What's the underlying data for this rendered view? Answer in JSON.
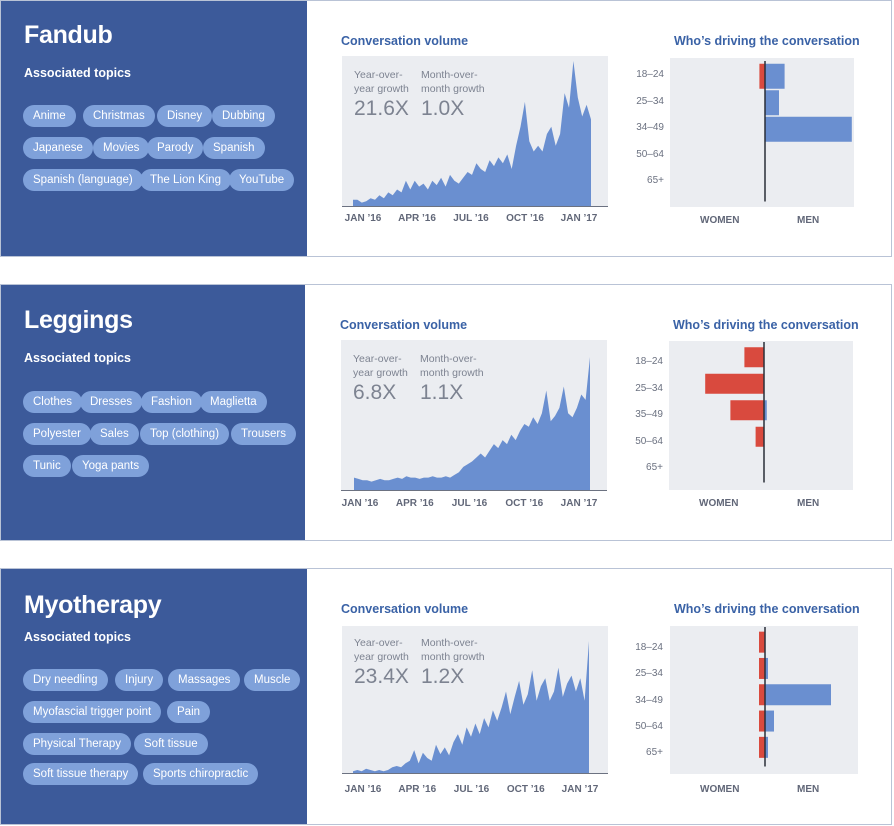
{
  "colors": {
    "panel": "#3c5a9a",
    "pill": "#7fa1da",
    "men": "#6a8fd0",
    "women": "#d94a3e",
    "area": "#6a8fd0"
  },
  "cards": [
    {
      "title": "Fandub",
      "associated_label": "Associated topics",
      "topics": [
        "Anime",
        "Christmas",
        "Disney",
        "Dubbing",
        "Japanese",
        "Movies",
        "Parody",
        "Spanish",
        "Spanish (language)",
        "The Lion King",
        "YouTube"
      ],
      "volume_title": "Conversation volume",
      "yoy_label": "Year-over-\nyear growth",
      "yoy_value": "21.6X",
      "mom_label": "Month-over-\nmonth growth",
      "mom_value": "1.0X",
      "demo_title": "Who’s driving the conversation",
      "women_label": "WOMEN",
      "men_label": "MEN"
    },
    {
      "title": "Leggings",
      "associated_label": "Associated topics",
      "topics": [
        "Clothes",
        "Dresses",
        "Fashion",
        "Maglietta",
        "Polyester",
        "Sales",
        "Top (clothing)",
        "Trousers",
        "Tunic",
        "Yoga pants"
      ],
      "volume_title": "Conversation volume",
      "yoy_label": "Year-over-\nyear growth",
      "yoy_value": "6.8X",
      "mom_label": "Month-over-\nmonth growth",
      "mom_value": "1.1X",
      "demo_title": "Who’s driving the conversation",
      "women_label": "WOMEN",
      "men_label": "MEN"
    },
    {
      "title": "Myotherapy",
      "associated_label": "Associated topics",
      "topics": [
        "Dry needling",
        "Injury",
        "Massages",
        "Muscle",
        "Myofascial trigger point",
        "Pain",
        "Physical Therapy",
        "Soft tissue",
        "Soft tissue therapy",
        "Sports chiropractic"
      ],
      "volume_title": "Conversation volume",
      "yoy_label": "Year-over-\nyear growth",
      "yoy_value": "23.4X",
      "mom_label": "Month-over-\nmonth growth",
      "mom_value": "1.2X",
      "demo_title": "Who’s driving the conversation",
      "women_label": "WOMEN",
      "men_label": "MEN"
    }
  ],
  "chart_data": [
    {
      "type": "area",
      "title": "Conversation volume",
      "x_ticks": [
        "JAN ’16",
        "APR ’16",
        "JUL ’16",
        "OCT ’16",
        "JAN ’17"
      ],
      "values": [
        0.05,
        0.05,
        0.03,
        0.04,
        0.06,
        0.05,
        0.08,
        0.06,
        0.1,
        0.08,
        0.12,
        0.1,
        0.18,
        0.12,
        0.18,
        0.14,
        0.16,
        0.12,
        0.18,
        0.15,
        0.2,
        0.14,
        0.22,
        0.18,
        0.16,
        0.2,
        0.24,
        0.22,
        0.3,
        0.26,
        0.24,
        0.32,
        0.28,
        0.34,
        0.3,
        0.36,
        0.26,
        0.42,
        0.55,
        0.72,
        0.45,
        0.38,
        0.42,
        0.38,
        0.5,
        0.55,
        0.42,
        0.5,
        0.78,
        0.68,
        1.0,
        0.75,
        0.62,
        0.7,
        0.6
      ],
      "ylim": [
        0,
        1
      ]
    },
    {
      "type": "bar",
      "title": "Who’s driving the conversation",
      "categories": [
        "18–24",
        "25–34",
        "34–49",
        "50–64",
        "65+"
      ],
      "series": [
        {
          "name": "WOMEN",
          "values": [
            0.02,
            0.0,
            0.0,
            0.0,
            0.0
          ]
        },
        {
          "name": "MEN",
          "values": [
            0.07,
            0.05,
            0.31,
            0.0,
            0.0
          ]
        }
      ]
    },
    {
      "type": "area",
      "title": "Conversation volume",
      "x_ticks": [
        "JAN ’16",
        "APR ’16",
        "JUL ’16",
        "OCT ’16",
        "JAN ’17"
      ],
      "values": [
        0.1,
        0.09,
        0.08,
        0.08,
        0.07,
        0.08,
        0.09,
        0.08,
        0.08,
        0.09,
        0.1,
        0.09,
        0.11,
        0.1,
        0.1,
        0.09,
        0.1,
        0.1,
        0.11,
        0.1,
        0.1,
        0.11,
        0.1,
        0.12,
        0.14,
        0.18,
        0.2,
        0.22,
        0.25,
        0.28,
        0.25,
        0.3,
        0.35,
        0.32,
        0.38,
        0.35,
        0.42,
        0.38,
        0.45,
        0.5,
        0.48,
        0.55,
        0.5,
        0.58,
        0.75,
        0.52,
        0.56,
        0.62,
        0.78,
        0.58,
        0.55,
        0.62,
        0.72,
        0.68,
        1.0
      ],
      "ylim": [
        0,
        1
      ]
    },
    {
      "type": "bar",
      "title": "Who’s driving the conversation",
      "categories": [
        "18–24",
        "25–34",
        "35–49",
        "50–64",
        "65+"
      ],
      "series": [
        {
          "name": "WOMEN",
          "values": [
            0.07,
            0.21,
            0.12,
            0.03,
            0.0
          ]
        },
        {
          "name": "MEN",
          "values": [
            0.0,
            0.0,
            0.01,
            0.0,
            0.0
          ]
        }
      ]
    },
    {
      "type": "area",
      "title": "Conversation volume",
      "x_ticks": [
        "JAN ’16",
        "APR ’16",
        "JUL ’16",
        "OCT ’16",
        "JAN ’17"
      ],
      "values": [
        0.02,
        0.03,
        0.02,
        0.04,
        0.03,
        0.02,
        0.03,
        0.02,
        0.03,
        0.05,
        0.06,
        0.05,
        0.08,
        0.1,
        0.18,
        0.08,
        0.16,
        0.12,
        0.1,
        0.22,
        0.15,
        0.2,
        0.14,
        0.24,
        0.3,
        0.22,
        0.35,
        0.28,
        0.38,
        0.3,
        0.42,
        0.35,
        0.48,
        0.4,
        0.5,
        0.62,
        0.45,
        0.58,
        0.7,
        0.52,
        0.6,
        0.78,
        0.55,
        0.66,
        0.72,
        0.55,
        0.62,
        0.8,
        0.58,
        0.68,
        0.74,
        0.62,
        0.72,
        0.55,
        1.0
      ],
      "ylim": [
        0,
        1
      ]
    },
    {
      "type": "bar",
      "title": "Who’s driving the conversation",
      "categories": [
        "18–24",
        "25–34",
        "34–49",
        "50–64",
        "65+"
      ],
      "series": [
        {
          "name": "WOMEN",
          "values": [
            0.02,
            0.02,
            0.02,
            0.02,
            0.02
          ]
        },
        {
          "name": "MEN",
          "values": [
            0.0,
            0.01,
            0.22,
            0.03,
            0.01
          ]
        }
      ]
    }
  ]
}
